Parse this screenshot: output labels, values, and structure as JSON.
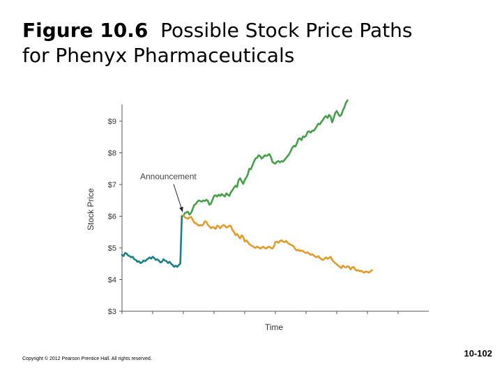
{
  "slide": {
    "title_fig": "Figure 10.6",
    "title_rest": "Possible Stock Price Paths",
    "title_line2": "for Phenyx Pharmaceuticals",
    "copyright": "Copyright © 2012 Pearson Prentice Hall. All rights reserved.",
    "page_number": "10-102"
  },
  "chart_data": {
    "type": "line",
    "title": "",
    "xlabel": "Time",
    "ylabel": "Stock Price",
    "ylim": [
      3,
      10
    ],
    "y_ticks": [
      3,
      4,
      5,
      6,
      7,
      8,
      9
    ],
    "y_tick_labels": [
      "$3",
      "$4",
      "$5",
      "$6",
      "$7",
      "$8",
      "$9"
    ],
    "x_ticks": [
      0,
      1,
      2,
      3,
      4,
      5,
      6,
      7,
      8,
      9
    ],
    "xlim": [
      0,
      10
    ],
    "grid": false,
    "annotation": {
      "text": "Announcement",
      "x": 2.0,
      "y": 6.0
    },
    "series": [
      {
        "color": "#1a7f86",
        "points": [
          [
            0,
            4.78
          ],
          [
            0.05,
            4.74
          ],
          [
            0.1,
            4.84
          ],
          [
            0.15,
            4.82
          ],
          [
            0.2,
            4.76
          ],
          [
            0.25,
            4.74
          ],
          [
            0.3,
            4.7
          ],
          [
            0.35,
            4.72
          ],
          [
            0.4,
            4.64
          ],
          [
            0.45,
            4.62
          ],
          [
            0.5,
            4.56
          ],
          [
            0.55,
            4.58
          ],
          [
            0.6,
            4.52
          ],
          [
            0.65,
            4.54
          ],
          [
            0.7,
            4.6
          ],
          [
            0.75,
            4.58
          ],
          [
            0.8,
            4.62
          ],
          [
            0.85,
            4.66
          ],
          [
            0.9,
            4.7
          ],
          [
            0.95,
            4.66
          ],
          [
            1.0,
            4.72
          ],
          [
            1.05,
            4.68
          ],
          [
            1.1,
            4.62
          ],
          [
            1.15,
            4.64
          ],
          [
            1.2,
            4.6
          ],
          [
            1.25,
            4.54
          ],
          [
            1.3,
            4.56
          ],
          [
            1.35,
            4.64
          ],
          [
            1.4,
            4.6
          ],
          [
            1.45,
            4.58
          ],
          [
            1.5,
            4.52
          ],
          [
            1.55,
            4.56
          ],
          [
            1.6,
            4.5
          ],
          [
            1.65,
            4.46
          ],
          [
            1.7,
            4.4
          ],
          [
            1.75,
            4.44
          ],
          [
            1.8,
            4.4
          ],
          [
            1.85,
            4.46
          ],
          [
            1.9,
            4.5
          ],
          [
            1.95,
            6.0
          ],
          [
            2.0,
            6.02
          ]
        ]
      },
      {
        "color": "#43a047",
        "points": [
          [
            2.0,
            6.02
          ],
          [
            2.05,
            6.1
          ],
          [
            2.1,
            6.12
          ],
          [
            2.15,
            6.14
          ],
          [
            2.2,
            6.05
          ],
          [
            2.25,
            6.1
          ],
          [
            2.3,
            6.22
          ],
          [
            2.35,
            6.35
          ],
          [
            2.4,
            6.38
          ],
          [
            2.45,
            6.45
          ],
          [
            2.5,
            6.5
          ],
          [
            2.55,
            6.48
          ],
          [
            2.6,
            6.46
          ],
          [
            2.65,
            6.5
          ],
          [
            2.7,
            6.48
          ],
          [
            2.75,
            6.52
          ],
          [
            2.8,
            6.48
          ],
          [
            2.85,
            6.36
          ],
          [
            2.9,
            6.4
          ],
          [
            2.95,
            6.52
          ],
          [
            3.0,
            6.64
          ],
          [
            3.05,
            6.66
          ],
          [
            3.1,
            6.62
          ],
          [
            3.15,
            6.68
          ],
          [
            3.2,
            6.64
          ],
          [
            3.25,
            6.7
          ],
          [
            3.3,
            6.66
          ],
          [
            3.35,
            6.62
          ],
          [
            3.4,
            6.72
          ],
          [
            3.45,
            6.68
          ],
          [
            3.5,
            6.64
          ],
          [
            3.55,
            6.76
          ],
          [
            3.6,
            6.82
          ],
          [
            3.65,
            6.9
          ],
          [
            3.7,
            6.96
          ],
          [
            3.75,
            6.92
          ],
          [
            3.8,
            7.14
          ],
          [
            3.85,
            7.2
          ],
          [
            3.9,
            7.1
          ],
          [
            3.95,
            7.02
          ],
          [
            4.0,
            7.14
          ],
          [
            4.05,
            7.22
          ],
          [
            4.1,
            7.32
          ],
          [
            4.15,
            7.5
          ],
          [
            4.2,
            7.48
          ],
          [
            4.25,
            7.6
          ],
          [
            4.3,
            7.72
          ],
          [
            4.35,
            7.82
          ],
          [
            4.4,
            7.84
          ],
          [
            4.45,
            7.92
          ],
          [
            4.5,
            7.9
          ],
          [
            4.55,
            7.82
          ],
          [
            4.6,
            7.86
          ],
          [
            4.65,
            7.92
          ],
          [
            4.7,
            7.9
          ],
          [
            4.75,
            7.92
          ],
          [
            4.8,
            7.96
          ],
          [
            4.85,
            7.88
          ],
          [
            4.9,
            7.72
          ],
          [
            4.95,
            7.68
          ],
          [
            5.0,
            7.66
          ],
          [
            5.05,
            7.72
          ],
          [
            5.1,
            7.74
          ],
          [
            5.15,
            7.7
          ],
          [
            5.2,
            7.74
          ],
          [
            5.25,
            7.72
          ],
          [
            5.3,
            7.78
          ],
          [
            5.35,
            7.84
          ],
          [
            5.4,
            7.9
          ],
          [
            5.45,
            7.96
          ],
          [
            5.5,
            8.06
          ],
          [
            5.55,
            8.16
          ],
          [
            5.6,
            8.22
          ],
          [
            5.65,
            8.2
          ],
          [
            5.7,
            8.3
          ],
          [
            5.75,
            8.44
          ],
          [
            5.8,
            8.46
          ],
          [
            5.85,
            8.4
          ],
          [
            5.9,
            8.52
          ],
          [
            5.95,
            8.5
          ],
          [
            6.0,
            8.54
          ],
          [
            6.05,
            8.66
          ],
          [
            6.1,
            8.68
          ],
          [
            6.15,
            8.64
          ],
          [
            6.2,
            8.7
          ],
          [
            6.25,
            8.7
          ],
          [
            6.3,
            8.76
          ],
          [
            6.35,
            8.84
          ],
          [
            6.4,
            8.92
          ],
          [
            6.45,
            8.9
          ],
          [
            6.5,
            8.98
          ],
          [
            6.55,
            9.04
          ],
          [
            6.6,
            9.12
          ],
          [
            6.65,
            9.16
          ],
          [
            6.7,
            9.1
          ],
          [
            6.75,
            9.2
          ],
          [
            6.8,
            9.14
          ],
          [
            6.85,
            8.96
          ],
          [
            6.9,
            9.1
          ],
          [
            6.95,
            9.26
          ],
          [
            7.0,
            9.32
          ],
          [
            7.05,
            9.22
          ],
          [
            7.1,
            9.16
          ],
          [
            7.15,
            9.2
          ],
          [
            7.2,
            9.34
          ],
          [
            7.25,
            9.44
          ],
          [
            7.3,
            9.58
          ],
          [
            7.35,
            9.66
          ]
        ]
      },
      {
        "color": "#e39a2a",
        "points": [
          [
            2.0,
            6.02
          ],
          [
            2.05,
            5.96
          ],
          [
            2.1,
            5.94
          ],
          [
            2.15,
            5.92
          ],
          [
            2.2,
            5.96
          ],
          [
            2.25,
            5.98
          ],
          [
            2.3,
            5.9
          ],
          [
            2.35,
            5.8
          ],
          [
            2.4,
            5.78
          ],
          [
            2.45,
            5.74
          ],
          [
            2.5,
            5.7
          ],
          [
            2.55,
            5.72
          ],
          [
            2.6,
            5.7
          ],
          [
            2.65,
            5.74
          ],
          [
            2.7,
            5.84
          ],
          [
            2.75,
            5.82
          ],
          [
            2.8,
            5.72
          ],
          [
            2.85,
            5.68
          ],
          [
            2.9,
            5.62
          ],
          [
            2.95,
            5.66
          ],
          [
            3.0,
            5.64
          ],
          [
            3.05,
            5.6
          ],
          [
            3.1,
            5.7
          ],
          [
            3.15,
            5.68
          ],
          [
            3.2,
            5.62
          ],
          [
            3.25,
            5.68
          ],
          [
            3.3,
            5.72
          ],
          [
            3.35,
            5.7
          ],
          [
            3.4,
            5.64
          ],
          [
            3.45,
            5.66
          ],
          [
            3.5,
            5.7
          ],
          [
            3.55,
            5.68
          ],
          [
            3.6,
            5.56
          ],
          [
            3.65,
            5.5
          ],
          [
            3.7,
            5.4
          ],
          [
            3.75,
            5.44
          ],
          [
            3.8,
            5.36
          ],
          [
            3.85,
            5.3
          ],
          [
            3.9,
            5.4
          ],
          [
            3.95,
            5.34
          ],
          [
            4.0,
            5.2
          ],
          [
            4.05,
            5.24
          ],
          [
            4.1,
            5.18
          ],
          [
            4.15,
            5.12
          ],
          [
            4.2,
            5.08
          ],
          [
            4.25,
            5.06
          ],
          [
            4.3,
            5.02
          ],
          [
            4.35,
            5.0
          ],
          [
            4.4,
            5.04
          ],
          [
            4.45,
            5.02
          ],
          [
            4.5,
            4.98
          ],
          [
            4.55,
            5.0
          ],
          [
            4.6,
            5.04
          ],
          [
            4.65,
            5.0
          ],
          [
            4.7,
            4.98
          ],
          [
            4.75,
            5.02
          ],
          [
            4.8,
            5.04
          ],
          [
            4.85,
            5.0
          ],
          [
            4.9,
            4.98
          ],
          [
            4.95,
            5.04
          ],
          [
            5.0,
            5.18
          ],
          [
            5.05,
            5.2
          ],
          [
            5.1,
            5.16
          ],
          [
            5.15,
            5.22
          ],
          [
            5.2,
            5.24
          ],
          [
            5.25,
            5.2
          ],
          [
            5.3,
            5.18
          ],
          [
            5.35,
            5.22
          ],
          [
            5.4,
            5.16
          ],
          [
            5.45,
            5.12
          ],
          [
            5.5,
            5.1
          ],
          [
            5.55,
            5.08
          ],
          [
            5.6,
            5.04
          ],
          [
            5.65,
            4.96
          ],
          [
            5.7,
            4.92
          ],
          [
            5.75,
            4.94
          ],
          [
            5.8,
            4.9
          ],
          [
            5.85,
            4.92
          ],
          [
            5.9,
            4.9
          ],
          [
            5.95,
            4.86
          ],
          [
            6.0,
            4.84
          ],
          [
            6.05,
            4.86
          ],
          [
            6.1,
            4.82
          ],
          [
            6.15,
            4.78
          ],
          [
            6.2,
            4.8
          ],
          [
            6.25,
            4.76
          ],
          [
            6.3,
            4.72
          ],
          [
            6.35,
            4.7
          ],
          [
            6.4,
            4.74
          ],
          [
            6.45,
            4.68
          ],
          [
            6.5,
            4.64
          ],
          [
            6.55,
            4.62
          ],
          [
            6.6,
            4.66
          ],
          [
            6.65,
            4.7
          ],
          [
            6.7,
            4.66
          ],
          [
            6.75,
            4.68
          ],
          [
            6.8,
            4.72
          ],
          [
            6.85,
            4.62
          ],
          [
            6.9,
            4.56
          ],
          [
            6.95,
            4.52
          ],
          [
            7.0,
            4.48
          ],
          [
            7.05,
            4.44
          ],
          [
            7.1,
            4.4
          ],
          [
            7.15,
            4.36
          ],
          [
            7.2,
            4.44
          ],
          [
            7.25,
            4.4
          ],
          [
            7.3,
            4.38
          ],
          [
            7.35,
            4.42
          ],
          [
            7.4,
            4.4
          ],
          [
            7.45,
            4.32
          ],
          [
            7.5,
            4.38
          ],
          [
            7.55,
            4.4
          ],
          [
            7.6,
            4.32
          ],
          [
            7.65,
            4.28
          ],
          [
            7.7,
            4.3
          ],
          [
            7.75,
            4.26
          ],
          [
            7.8,
            4.28
          ],
          [
            7.85,
            4.24
          ],
          [
            7.9,
            4.22
          ],
          [
            7.95,
            4.26
          ],
          [
            8.0,
            4.24
          ],
          [
            8.05,
            4.22
          ],
          [
            8.1,
            4.26
          ],
          [
            8.15,
            4.3
          ]
        ]
      }
    ]
  }
}
